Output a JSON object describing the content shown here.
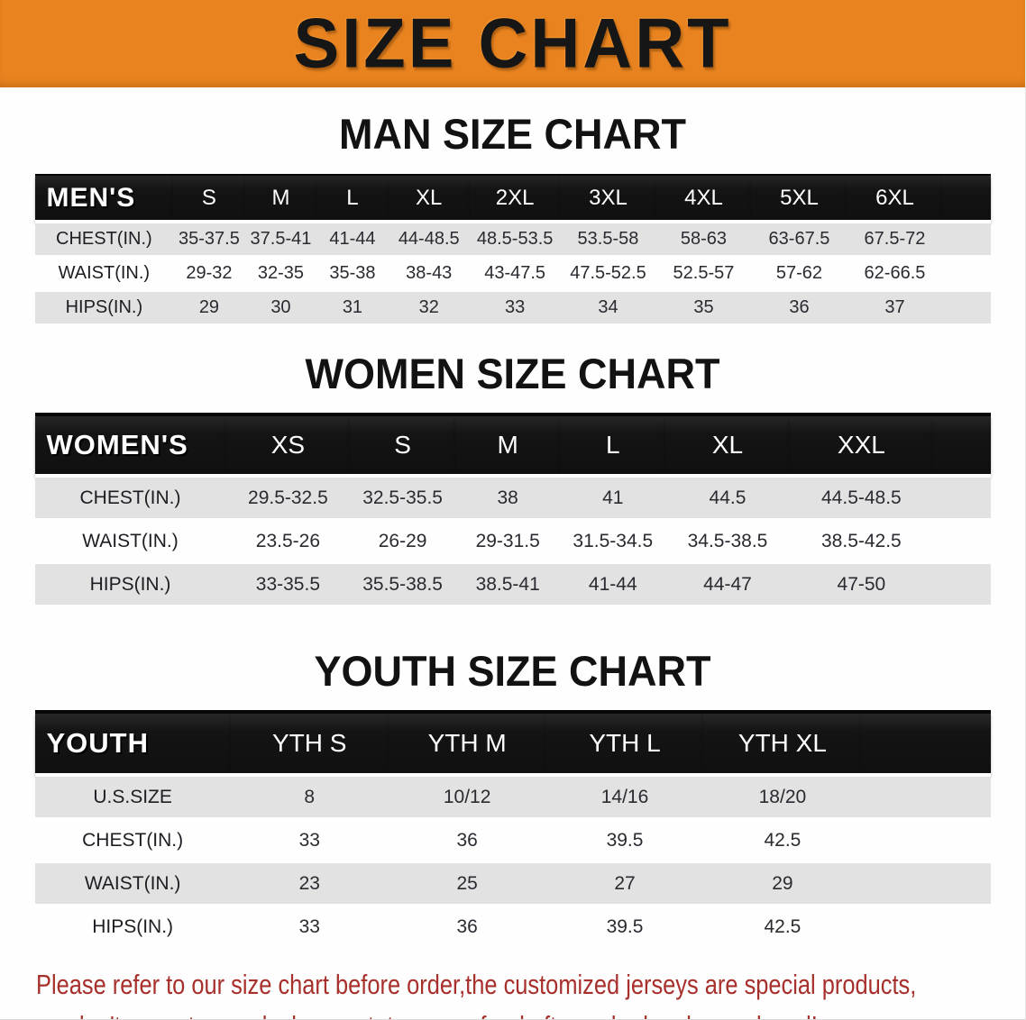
{
  "banner": {
    "title": "SIZE CHART",
    "bg_color": "#E8831F",
    "text_color": "#161616"
  },
  "headings": {
    "men": "MAN SIZE CHART",
    "women": "WOMEN SIZE CHART",
    "youth": "YOUTH SIZE CHART"
  },
  "tables": {
    "men": {
      "label": "MEN'S",
      "columns": [
        "S",
        "M",
        "L",
        "XL",
        "2XL",
        "3XL",
        "4XL",
        "5XL",
        "6XL"
      ],
      "rows": [
        {
          "label": "CHEST(IN.)",
          "values": [
            "35-37.5",
            "37.5-41",
            "41-44",
            "44-48.5",
            "48.5-53.5",
            "53.5-58",
            "58-63",
            "63-67.5",
            "67.5-72"
          ]
        },
        {
          "label": "WAIST(IN.)",
          "values": [
            "29-32",
            "32-35",
            "35-38",
            "38-43",
            "43-47.5",
            "47.5-52.5",
            "52.5-57",
            "57-62",
            "62-66.5"
          ]
        },
        {
          "label": "HIPS(IN.)",
          "values": [
            "29",
            "30",
            "31",
            "32",
            "33",
            "34",
            "35",
            "36",
            "37"
          ]
        }
      ]
    },
    "women": {
      "label": "WOMEN'S",
      "columns": [
        "XS",
        "S",
        "M",
        "L",
        "XL",
        "XXL"
      ],
      "rows": [
        {
          "label": "CHEST(IN.)",
          "values": [
            "29.5-32.5",
            "32.5-35.5",
            "38",
            "41",
            "44.5",
            "44.5-48.5"
          ]
        },
        {
          "label": "WAIST(IN.)",
          "values": [
            "23.5-26",
            "26-29",
            "29-31.5",
            "31.5-34.5",
            "34.5-38.5",
            "38.5-42.5"
          ]
        },
        {
          "label": "HIPS(IN.)",
          "values": [
            "33-35.5",
            "35.5-38.5",
            "38.5-41",
            "41-44",
            "44-47",
            "47-50"
          ]
        }
      ]
    },
    "youth": {
      "label": "YOUTH",
      "columns": [
        "YTH S",
        "YTH M",
        "YTH L",
        "YTH XL"
      ],
      "rows": [
        {
          "label": "U.S.SIZE",
          "values": [
            "8",
            "10/12",
            "14/16",
            "18/20"
          ]
        },
        {
          "label": "CHEST(IN.)",
          "values": [
            "33",
            "36",
            "39.5",
            "42.5"
          ]
        },
        {
          "label": "WAIST(IN.)",
          "values": [
            "23",
            "25",
            "27",
            "29"
          ]
        },
        {
          "label": "HIPS(IN.)",
          "values": [
            "33",
            "36",
            "39.5",
            "42.5"
          ]
        }
      ]
    }
  },
  "footer": {
    "line1": "Please refer to our size chart before order,the customized jerseys are special products,",
    "line2": "we don't accept cancel, change, teturn or refund after order has been placed!",
    "text_color": "#A8302C"
  }
}
